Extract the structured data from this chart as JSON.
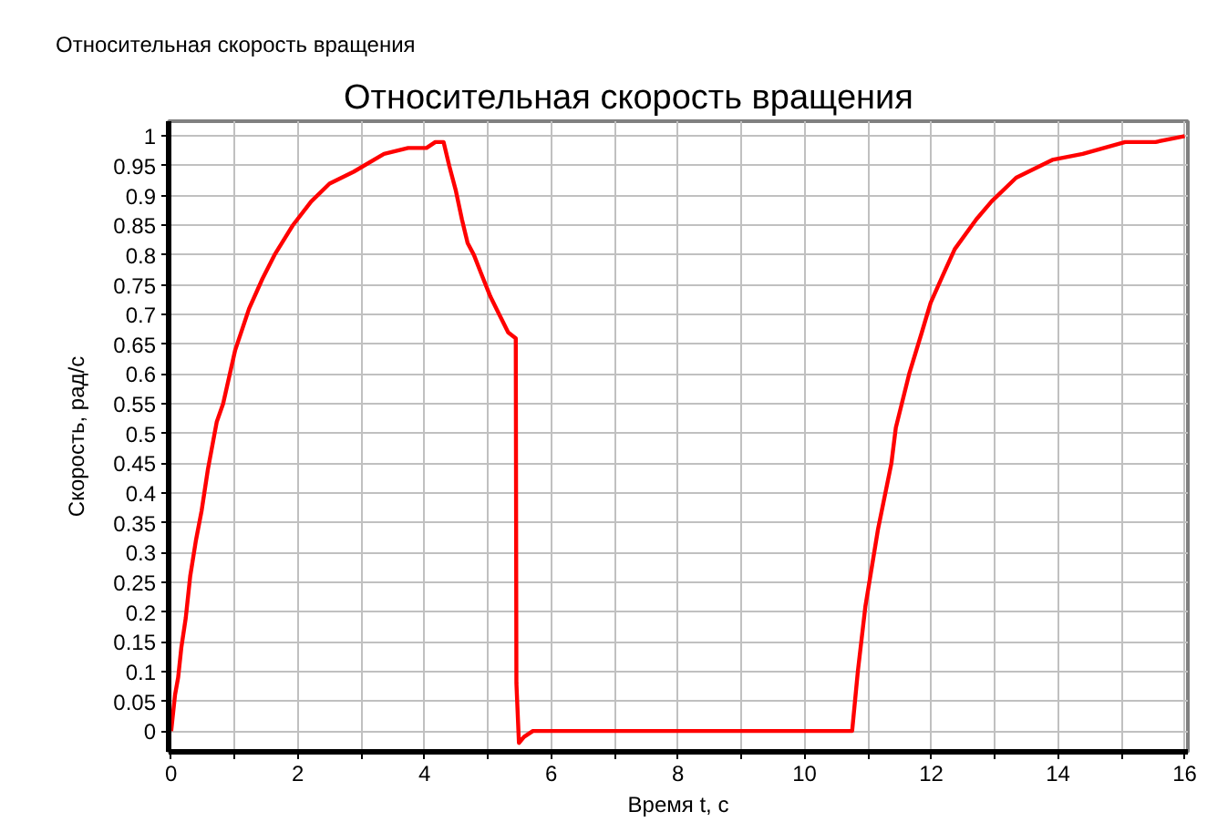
{
  "chart_data": {
    "type": "line",
    "title": "Относительная скорость вращения",
    "xlabel": "Время t, с",
    "ylabel": "Скорость, рад/с",
    "annotations": [
      "Относительная скорость вращения"
    ],
    "xlim": [
      -0.04,
      16.05
    ],
    "ylim": [
      -0.035,
      1.025
    ],
    "xticks": [
      0,
      {
        "value": 1,
        "label": null
      },
      2,
      {
        "value": 3,
        "label": null
      },
      4,
      {
        "value": 5,
        "label": null
      },
      6,
      {
        "value": 7,
        "label": null
      },
      8,
      {
        "value": 9,
        "label": null
      },
      10,
      {
        "value": 11,
        "label": null
      },
      12,
      {
        "value": 13,
        "label": null
      },
      14,
      {
        "value": 15,
        "label": null
      },
      16
    ],
    "yticks": [
      0,
      0.05,
      0.1,
      0.15,
      0.2,
      0.25,
      0.3,
      0.35,
      0.4,
      0.45,
      0.5,
      0.55,
      0.6,
      0.65,
      0.7,
      0.75,
      0.8,
      0.85,
      0.9,
      0.95,
      1
    ],
    "grid": true,
    "marker": "none",
    "line_style": "solid",
    "series": [
      {
        "color": "#ff0000",
        "x": [
          0,
          0.02,
          0.06,
          0.11,
          0.16,
          0.23,
          0.3,
          0.39,
          0.48,
          0.58,
          0.72,
          0.82,
          1.01,
          1.23,
          1.44,
          1.63,
          1.92,
          2.21,
          2.5,
          2.88,
          3.36,
          3.74,
          4.03,
          4.17,
          4.3,
          4.39,
          4.49,
          4.59,
          4.68,
          4.78,
          4.89,
          5.04,
          5.18,
          5.32,
          5.44,
          5.45,
          5.49,
          5.57,
          5.71,
          10.75,
          10.84,
          10.96,
          11.16,
          11.37,
          11.44,
          11.65,
          11.85,
          11.99,
          12.2,
          12.37,
          12.71,
          12.95,
          13.34,
          13.91,
          14.39,
          15.06,
          15.54,
          16.0
        ],
        "values": [
          0,
          0.02,
          0.06,
          0.09,
          0.14,
          0.19,
          0.26,
          0.32,
          0.37,
          0.44,
          0.52,
          0.55,
          0.64,
          0.71,
          0.76,
          0.8,
          0.85,
          0.89,
          0.92,
          0.94,
          0.97,
          0.98,
          0.98,
          0.99,
          0.99,
          0.95,
          0.91,
          0.86,
          0.82,
          0.8,
          0.77,
          0.73,
          0.7,
          0.67,
          0.66,
          0.08,
          -0.02,
          -0.01,
          0,
          0,
          0.1,
          0.21,
          0.34,
          0.45,
          0.51,
          0.6,
          0.67,
          0.72,
          0.77,
          0.81,
          0.86,
          0.89,
          0.93,
          0.96,
          0.97,
          0.99,
          0.99,
          1.0
        ]
      }
    ]
  }
}
